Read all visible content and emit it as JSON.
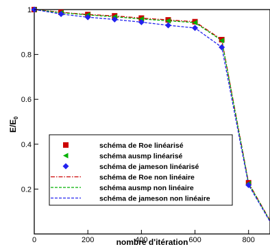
{
  "chart_data": {
    "type": "line",
    "xlabel": "nombre d'itération",
    "ylabel_main": "E/E",
    "ylabel_sub": "0",
    "xlim": [
      0,
      880
    ],
    "ylim": [
      0,
      1.0
    ],
    "x_ticks": [
      0,
      200,
      400,
      600,
      800
    ],
    "y_ticks": [
      0.2,
      0.4,
      0.6,
      0.8,
      1
    ],
    "x_tick_labels": [
      "0",
      "200",
      "400",
      "600",
      "800"
    ],
    "y_tick_labels": [
      "0.2",
      "0.4",
      "0.6",
      "0.8",
      "1"
    ],
    "legend_position": "lower-left",
    "grid": false,
    "series": [
      {
        "name": "schéma de Roe linéarisé",
        "style": "marker-square",
        "color": "#cc0000",
        "x": [
          0,
          100,
          200,
          300,
          400,
          500,
          600,
          700,
          800
        ],
        "y": [
          1.0,
          0.988,
          0.978,
          0.972,
          0.962,
          0.954,
          0.946,
          0.866,
          0.228
        ]
      },
      {
        "name": "schéma ausmp linéarisé",
        "style": "marker-triangle",
        "color": "#00b000",
        "x": [
          0,
          100,
          200,
          300,
          400,
          500,
          600,
          700,
          800
        ],
        "y": [
          1.0,
          0.986,
          0.976,
          0.968,
          0.958,
          0.95,
          0.942,
          0.862,
          0.225
        ]
      },
      {
        "name": "schéma de jameson linéarisé",
        "style": "marker-diamond",
        "color": "#2222ee",
        "x": [
          0,
          100,
          200,
          300,
          400,
          500,
          600,
          700,
          800
        ],
        "y": [
          1.0,
          0.98,
          0.966,
          0.956,
          0.944,
          0.93,
          0.918,
          0.832,
          0.218
        ]
      },
      {
        "name": "schéma de Roe non linéaire",
        "style": "dashdot",
        "color": "#cc0000",
        "x": [
          0,
          100,
          200,
          300,
          400,
          500,
          600,
          700,
          800,
          880
        ],
        "y": [
          1.0,
          0.988,
          0.978,
          0.972,
          0.962,
          0.954,
          0.946,
          0.866,
          0.228,
          0.06
        ]
      },
      {
        "name": "schéma ausmp non linéaire",
        "style": "dash",
        "color": "#00b000",
        "x": [
          0,
          100,
          200,
          300,
          400,
          500,
          600,
          700,
          800,
          880
        ],
        "y": [
          1.0,
          0.986,
          0.976,
          0.968,
          0.958,
          0.95,
          0.942,
          0.862,
          0.225,
          0.058
        ]
      },
      {
        "name": "schéma de jameson non linéaire",
        "style": "dash",
        "color": "#2222ee",
        "x": [
          0,
          100,
          200,
          300,
          400,
          500,
          600,
          700,
          800,
          880
        ],
        "y": [
          1.0,
          0.98,
          0.966,
          0.956,
          0.944,
          0.93,
          0.918,
          0.832,
          0.218,
          0.055
        ]
      }
    ]
  }
}
